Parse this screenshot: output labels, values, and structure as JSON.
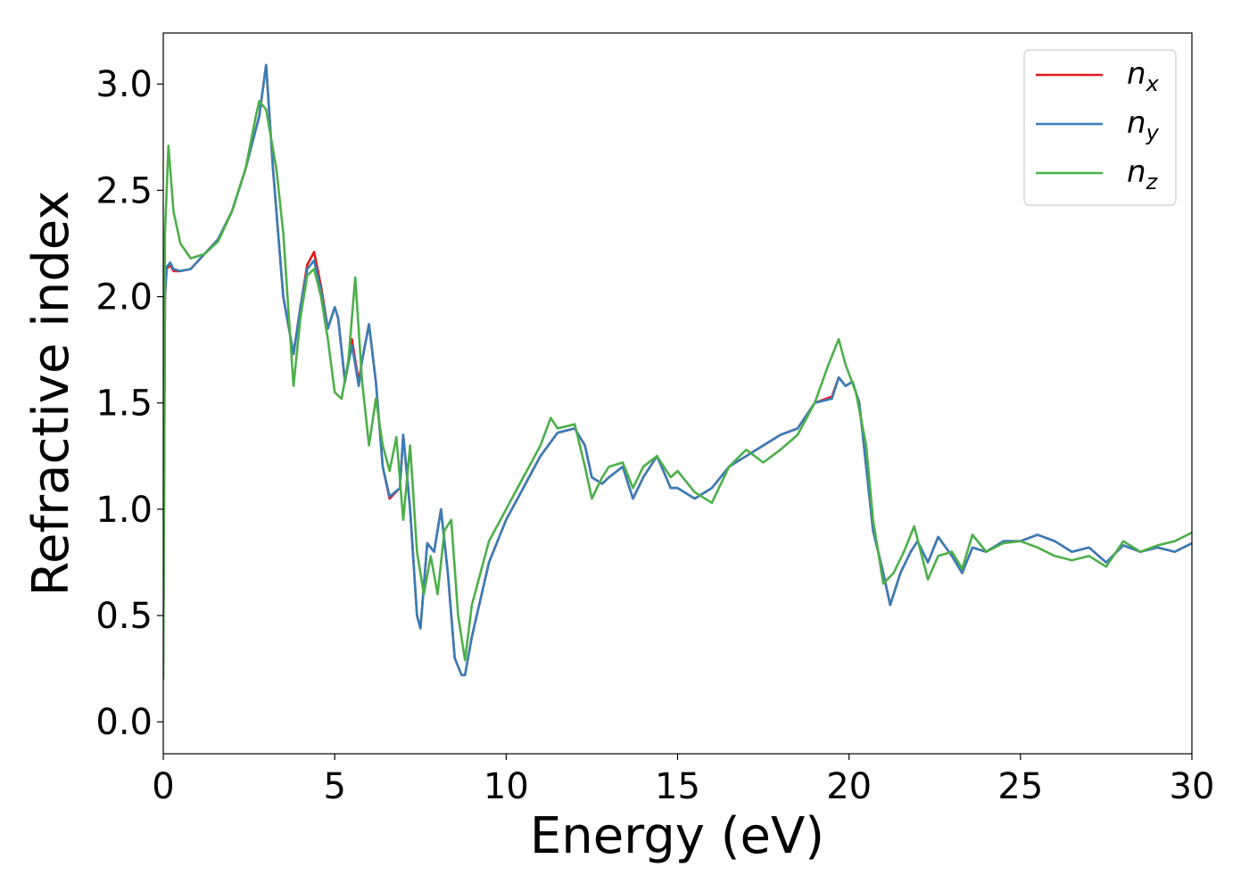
{
  "chart_data": {
    "type": "line",
    "xlabel": "Energy (eV)",
    "ylabel": "Refractive index",
    "xlim": [
      0,
      30
    ],
    "ylim": [
      -0.15,
      3.24
    ],
    "xticks": [
      0,
      5,
      10,
      15,
      20,
      25,
      30
    ],
    "xtick_labels": [
      "0",
      "5",
      "10",
      "15",
      "20",
      "25",
      "30"
    ],
    "yticks": [
      0.0,
      0.5,
      1.0,
      1.5,
      2.0,
      2.5,
      3.0
    ],
    "ytick_labels": [
      "0.0",
      "0.5",
      "1.0",
      "1.5",
      "2.0",
      "2.5",
      "3.0"
    ],
    "grid": false,
    "legend_position": "top-right",
    "series": [
      {
        "name": "n",
        "subscript": "x",
        "color": "#e41a1c",
        "x": [
          0.0,
          0.05,
          0.1,
          0.2,
          0.3,
          0.5,
          0.8,
          1.2,
          1.6,
          2.0,
          2.4,
          2.8,
          3.0,
          3.2,
          3.5,
          3.8,
          4.0,
          4.2,
          4.4,
          4.6,
          4.8,
          5.0,
          5.1,
          5.3,
          5.5,
          5.6,
          5.7,
          5.8,
          6.0,
          6.2,
          6.4,
          6.6,
          6.9,
          7.0,
          7.2,
          7.4,
          7.5,
          7.7,
          7.9,
          8.1,
          8.3,
          8.5,
          8.7,
          8.8,
          9.0,
          9.5,
          10.0,
          10.5,
          11.0,
          11.5,
          12.0,
          12.3,
          12.5,
          12.8,
          13.0,
          13.4,
          13.7,
          14.0,
          14.4,
          14.8,
          15.0,
          15.5,
          16.0,
          16.5,
          17.0,
          17.5,
          18.0,
          18.5,
          19.0,
          19.5,
          19.7,
          19.9,
          20.1,
          20.3,
          20.5,
          20.7,
          21.0,
          21.2,
          21.5,
          21.8,
          22.0,
          22.3,
          22.6,
          23.0,
          23.3,
          23.6,
          24.0,
          24.5,
          25.0,
          25.5,
          26.0,
          26.5,
          27.0,
          27.5,
          28.0,
          28.5,
          29.0,
          29.5,
          30.0
        ],
        "y": [
          0.3,
          2.0,
          2.13,
          2.15,
          2.12,
          2.12,
          2.13,
          2.2,
          2.27,
          2.4,
          2.6,
          2.85,
          3.09,
          2.6,
          2.0,
          1.73,
          1.95,
          2.15,
          2.21,
          2.05,
          1.85,
          1.95,
          1.9,
          1.6,
          1.8,
          1.7,
          1.6,
          1.7,
          1.87,
          1.6,
          1.2,
          1.05,
          1.1,
          1.35,
          1.0,
          0.5,
          0.44,
          0.84,
          0.8,
          1.0,
          0.7,
          0.3,
          0.22,
          0.22,
          0.4,
          0.75,
          0.95,
          1.1,
          1.25,
          1.36,
          1.38,
          1.3,
          1.15,
          1.12,
          1.15,
          1.2,
          1.05,
          1.15,
          1.25,
          1.1,
          1.1,
          1.05,
          1.1,
          1.2,
          1.25,
          1.3,
          1.35,
          1.38,
          1.5,
          1.53,
          1.62,
          1.58,
          1.6,
          1.5,
          1.2,
          0.9,
          0.7,
          0.55,
          0.7,
          0.8,
          0.85,
          0.75,
          0.87,
          0.78,
          0.7,
          0.82,
          0.8,
          0.85,
          0.85,
          0.88,
          0.85,
          0.8,
          0.82,
          0.75,
          0.83,
          0.8,
          0.82,
          0.8,
          0.84
        ]
      },
      {
        "name": "n",
        "subscript": "y",
        "color": "#377eb8",
        "x": [
          0.0,
          0.05,
          0.1,
          0.2,
          0.3,
          0.5,
          0.8,
          1.2,
          1.6,
          2.0,
          2.4,
          2.8,
          3.0,
          3.2,
          3.5,
          3.8,
          4.0,
          4.2,
          4.4,
          4.6,
          4.8,
          5.0,
          5.1,
          5.3,
          5.5,
          5.6,
          5.7,
          5.8,
          6.0,
          6.2,
          6.4,
          6.6,
          6.9,
          7.0,
          7.2,
          7.4,
          7.5,
          7.7,
          7.9,
          8.1,
          8.3,
          8.5,
          8.7,
          8.8,
          9.0,
          9.5,
          10.0,
          10.5,
          11.0,
          11.5,
          12.0,
          12.3,
          12.5,
          12.8,
          13.0,
          13.4,
          13.7,
          14.0,
          14.4,
          14.8,
          15.0,
          15.5,
          16.0,
          16.5,
          17.0,
          17.5,
          18.0,
          18.5,
          19.0,
          19.5,
          19.7,
          19.9,
          20.1,
          20.3,
          20.5,
          20.7,
          21.0,
          21.2,
          21.5,
          21.8,
          22.0,
          22.3,
          22.6,
          23.0,
          23.3,
          23.6,
          24.0,
          24.5,
          25.0,
          25.5,
          26.0,
          26.5,
          27.0,
          27.5,
          28.0,
          28.5,
          29.0,
          29.5,
          30.0
        ],
        "y": [
          0.3,
          2.0,
          2.14,
          2.16,
          2.13,
          2.12,
          2.13,
          2.2,
          2.27,
          2.4,
          2.6,
          2.85,
          3.09,
          2.6,
          2.0,
          1.73,
          1.95,
          2.13,
          2.17,
          2.03,
          1.85,
          1.95,
          1.9,
          1.6,
          1.77,
          1.68,
          1.58,
          1.7,
          1.87,
          1.6,
          1.2,
          1.06,
          1.1,
          1.35,
          1.0,
          0.5,
          0.44,
          0.84,
          0.8,
          1.0,
          0.7,
          0.3,
          0.22,
          0.22,
          0.4,
          0.75,
          0.95,
          1.1,
          1.25,
          1.36,
          1.38,
          1.3,
          1.15,
          1.12,
          1.15,
          1.2,
          1.05,
          1.15,
          1.25,
          1.1,
          1.1,
          1.05,
          1.1,
          1.2,
          1.25,
          1.3,
          1.35,
          1.38,
          1.5,
          1.52,
          1.62,
          1.58,
          1.6,
          1.5,
          1.2,
          0.9,
          0.7,
          0.55,
          0.7,
          0.8,
          0.85,
          0.75,
          0.87,
          0.78,
          0.7,
          0.82,
          0.8,
          0.85,
          0.85,
          0.88,
          0.85,
          0.8,
          0.82,
          0.75,
          0.83,
          0.8,
          0.82,
          0.8,
          0.84
        ]
      },
      {
        "name": "n",
        "subscript": "z",
        "color": "#4daf4a",
        "x": [
          0.0,
          0.05,
          0.15,
          0.3,
          0.5,
          0.8,
          1.2,
          1.6,
          2.0,
          2.4,
          2.7,
          2.8,
          3.0,
          3.3,
          3.5,
          3.8,
          4.0,
          4.2,
          4.4,
          4.6,
          4.8,
          5.0,
          5.2,
          5.4,
          5.6,
          5.8,
          6.0,
          6.2,
          6.4,
          6.6,
          6.8,
          7.0,
          7.2,
          7.4,
          7.6,
          7.8,
          8.0,
          8.2,
          8.4,
          8.6,
          8.8,
          9.0,
          9.5,
          10.0,
          10.5,
          11.0,
          11.3,
          11.5,
          12.0,
          12.3,
          12.5,
          12.8,
          13.0,
          13.4,
          13.7,
          14.0,
          14.4,
          14.8,
          15.0,
          15.5,
          16.0,
          16.5,
          17.0,
          17.5,
          18.0,
          18.5,
          19.0,
          19.4,
          19.7,
          19.9,
          20.2,
          20.5,
          20.7,
          21.0,
          21.3,
          21.6,
          21.9,
          22.3,
          22.6,
          23.0,
          23.3,
          23.6,
          24.0,
          24.5,
          25.0,
          25.5,
          26.0,
          26.5,
          27.0,
          27.5,
          28.0,
          28.5,
          29.0,
          29.5,
          30.0
        ],
        "y": [
          0.2,
          2.3,
          2.71,
          2.4,
          2.25,
          2.18,
          2.2,
          2.26,
          2.4,
          2.6,
          2.85,
          2.92,
          2.88,
          2.6,
          2.3,
          1.58,
          1.9,
          2.1,
          2.13,
          2.0,
          1.8,
          1.55,
          1.52,
          1.7,
          2.09,
          1.6,
          1.3,
          1.52,
          1.3,
          1.18,
          1.34,
          0.95,
          1.3,
          0.8,
          0.6,
          0.78,
          0.6,
          0.9,
          0.95,
          0.5,
          0.29,
          0.55,
          0.85,
          1.0,
          1.15,
          1.3,
          1.43,
          1.38,
          1.4,
          1.2,
          1.05,
          1.15,
          1.2,
          1.22,
          1.1,
          1.2,
          1.25,
          1.15,
          1.18,
          1.08,
          1.03,
          1.2,
          1.28,
          1.22,
          1.28,
          1.35,
          1.5,
          1.68,
          1.8,
          1.68,
          1.55,
          1.3,
          0.95,
          0.65,
          0.7,
          0.8,
          0.92,
          0.67,
          0.78,
          0.8,
          0.72,
          0.88,
          0.8,
          0.84,
          0.85,
          0.82,
          0.78,
          0.76,
          0.78,
          0.73,
          0.85,
          0.8,
          0.83,
          0.85,
          0.89
        ]
      }
    ]
  }
}
